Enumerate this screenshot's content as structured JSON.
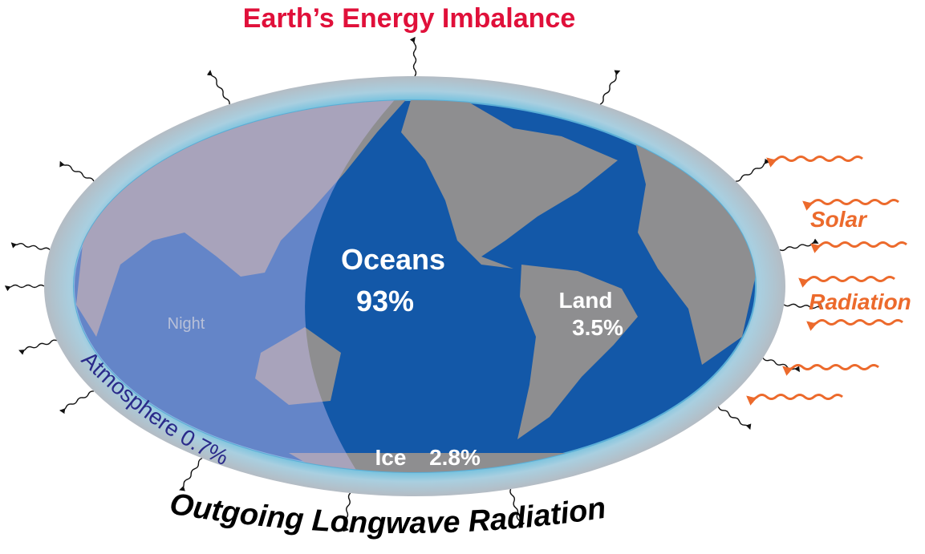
{
  "title": "Earth’s Energy Imbalance",
  "labels": {
    "oceans": "Oceans",
    "oceans_share": "93%",
    "land": "Land",
    "land_share": "3.5%",
    "ice": "Ice",
    "ice_share": "2.8%",
    "atmosphere": "Atmosphere 0.7%",
    "night": "Night",
    "solar": "Solar",
    "radiation": "Radiation",
    "outgoing": "Outgoing Longwave Radiation"
  }
}
